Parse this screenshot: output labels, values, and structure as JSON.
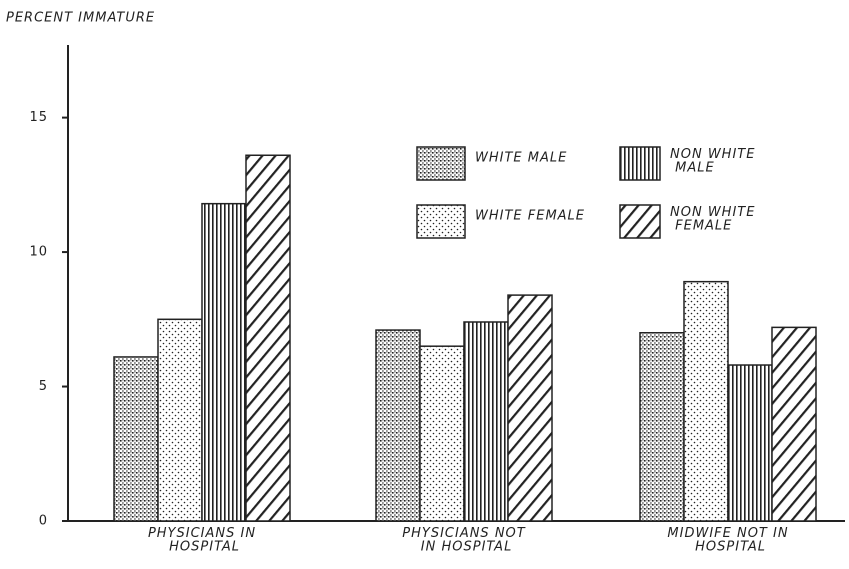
{
  "chart_data": {
    "type": "bar",
    "y_label": "PERCENT IMMATURE",
    "categories": [
      "PHYSICIANS IN\nHOSPITAL",
      "PHYSICIANS NOT\nIN HOSPITAL",
      "MIDWIFE NOT IN\nHOSPITAL"
    ],
    "series": [
      {
        "name": "WHITE MALE",
        "color": "#222222",
        "values": [
          6.1,
          7.1,
          7.0
        ]
      },
      {
        "name": "WHITE FEMALE",
        "color": "#222222",
        "values": [
          7.5,
          6.5,
          8.9
        ]
      },
      {
        "name": "NON WHITE\nMALE",
        "color": "#222222",
        "values": [
          11.8,
          7.4,
          5.8
        ]
      },
      {
        "name": "NON WHITE\nFEMALE",
        "color": "#222222",
        "values": [
          13.6,
          8.4,
          7.2
        ]
      }
    ],
    "ylim": [
      0,
      17.7
    ],
    "yticks": [
      0,
      5,
      10,
      15
    ],
    "grid": false
  }
}
